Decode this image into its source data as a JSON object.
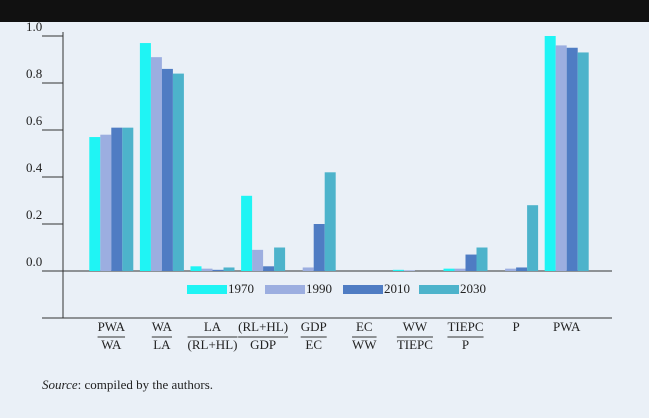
{
  "chart_data": {
    "type": "bar",
    "categories": [
      [
        "PWA",
        "WA"
      ],
      [
        "WA",
        "LA"
      ],
      [
        "LA",
        "(RL+HL)"
      ],
      [
        "(RL+HL)",
        "GDP"
      ],
      [
        "GDP",
        "EC"
      ],
      [
        "EC",
        "WW"
      ],
      [
        "WW",
        "TIEPC"
      ],
      [
        "TIEPC",
        "P"
      ],
      [
        "P"
      ],
      [
        "PWA"
      ]
    ],
    "series": [
      {
        "name": "1970",
        "color": "#1ff4f4",
        "values": [
          0.57,
          0.97,
          0.02,
          0.32,
          0,
          0,
          0.005,
          0.01,
          0,
          1.0
        ]
      },
      {
        "name": "1990",
        "color": "#9caee0",
        "values": [
          0.58,
          0.91,
          0.01,
          0.09,
          0.015,
          0,
          0.003,
          0.01,
          0.01,
          0.96
        ]
      },
      {
        "name": "2010",
        "color": "#4f7cc3",
        "values": [
          0.61,
          0.86,
          0.005,
          0.02,
          0.2,
          0,
          0,
          0.07,
          0.015,
          0.95
        ]
      },
      {
        "name": "2030",
        "color": "#4db3cb",
        "values": [
          0.61,
          0.84,
          0.015,
          0.1,
          0.42,
          0,
          0,
          0.1,
          0.28,
          0.93
        ]
      }
    ],
    "ylim": [
      -0.2,
      1.0
    ],
    "yticks": [
      {
        "value": 0,
        "label": "0.0"
      },
      {
        "value": 0.2,
        "label": "0.2"
      },
      {
        "value": 0.4,
        "label": "0.4"
      },
      {
        "value": 0.6,
        "label": "0.6"
      },
      {
        "value": 0.8,
        "label": "0.8"
      },
      {
        "value": 1.0,
        "label": "1.0"
      }
    ],
    "legend": "bottom",
    "source": {
      "label": "Source",
      "text": ": compiled by the authors."
    }
  }
}
